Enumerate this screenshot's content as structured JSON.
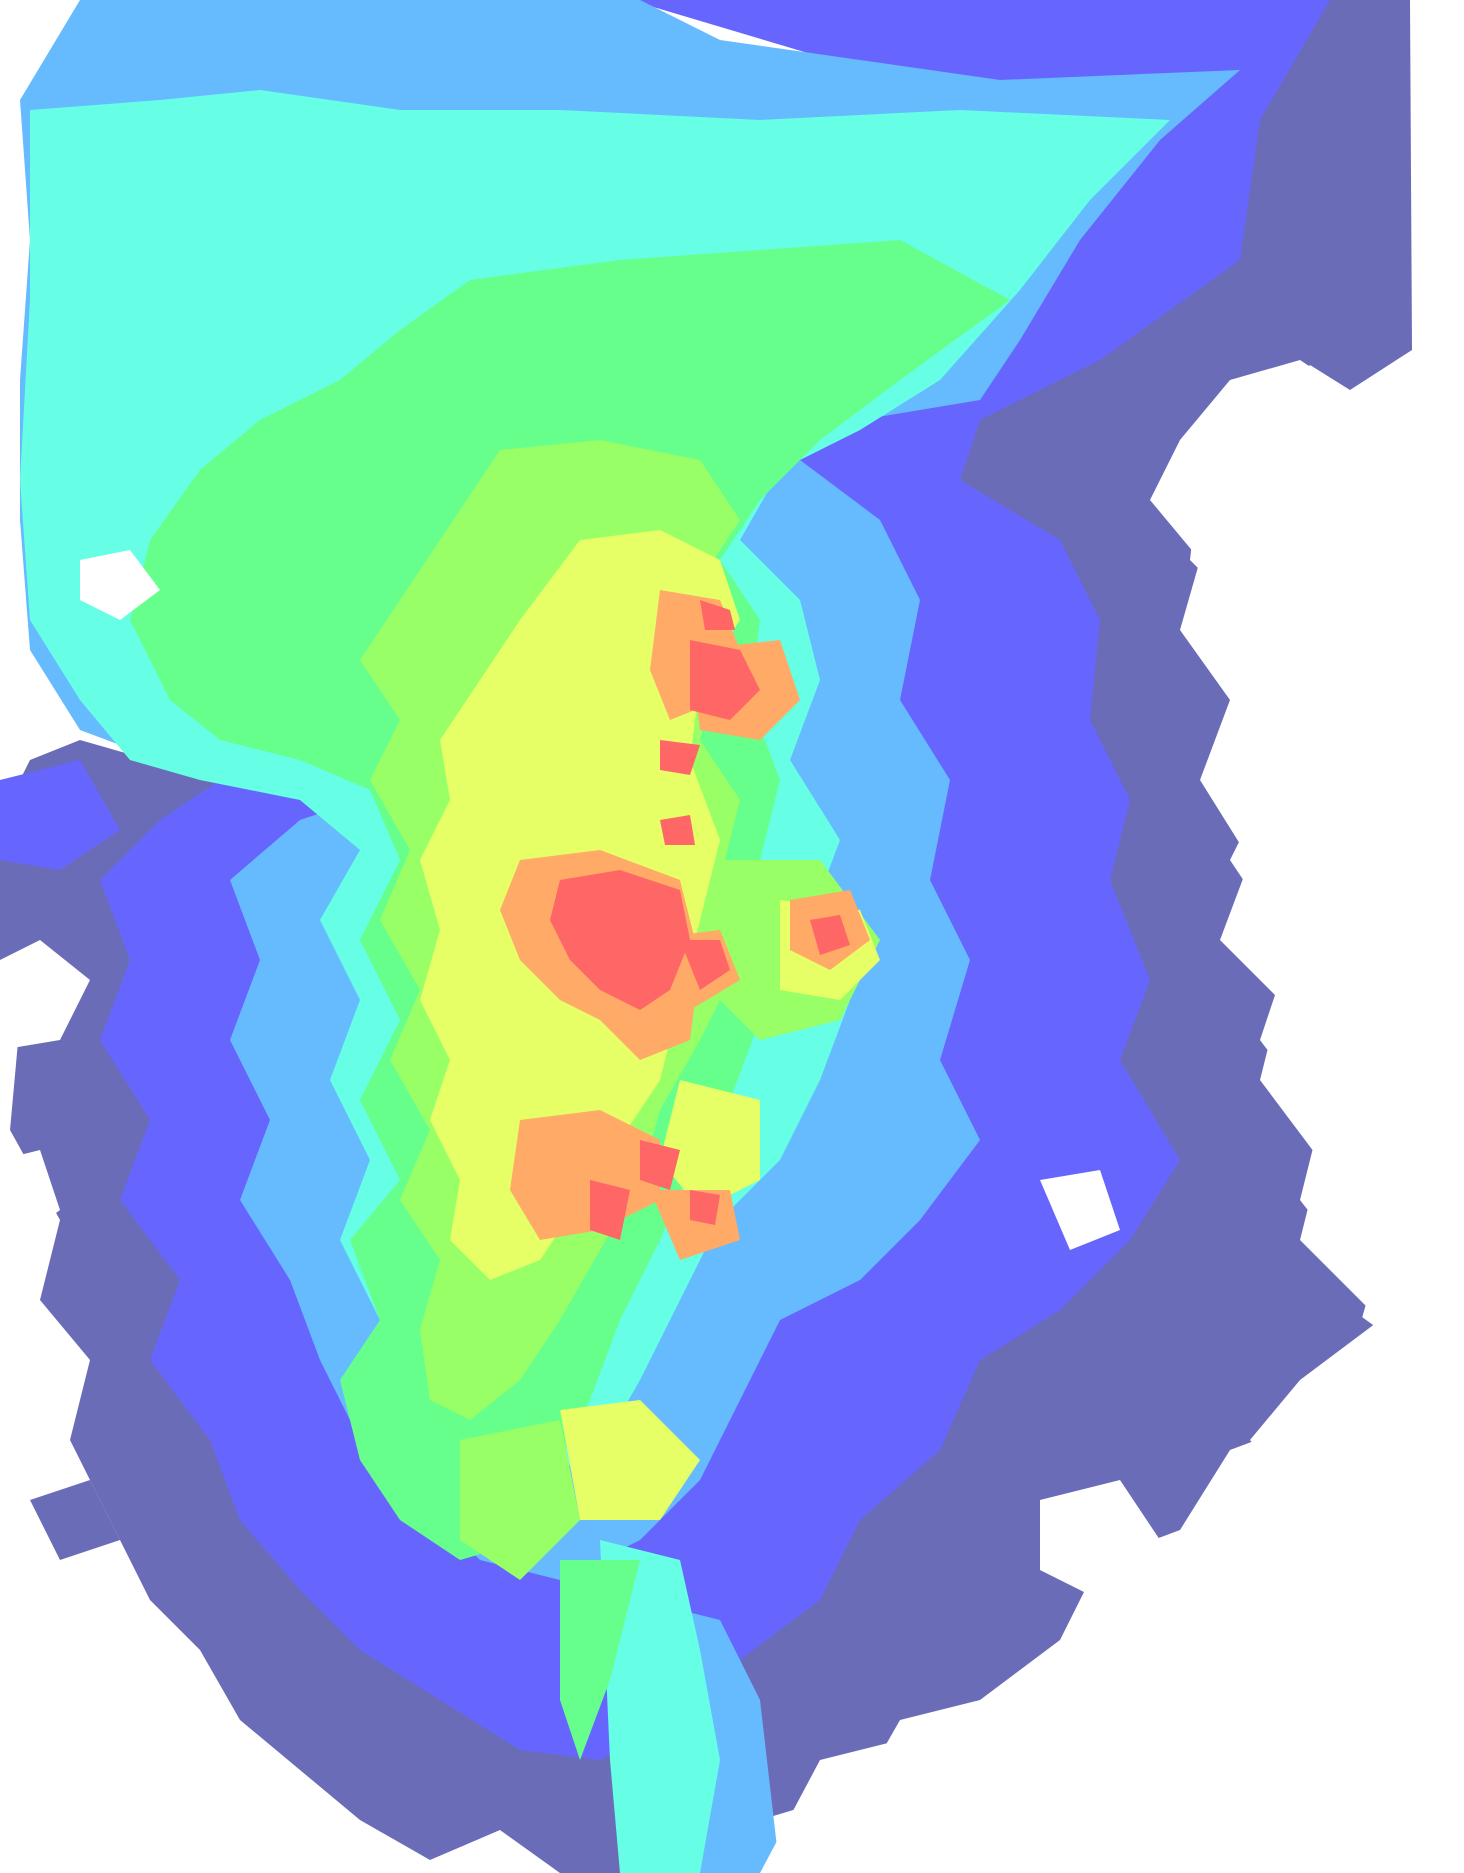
{
  "map": {
    "palette": {
      "level_0": "#6A6CB8",
      "level_1": "#6666FF",
      "level_2": "#66BBFF",
      "level_3": "#66FFE6",
      "level_4": "#66FF8C",
      "level_5": "#99FF66",
      "level_6": "#E6FF66",
      "level_7": "#FFAA66",
      "level_8": "#FF6666",
      "background": "#FFFFFF"
    }
  }
}
